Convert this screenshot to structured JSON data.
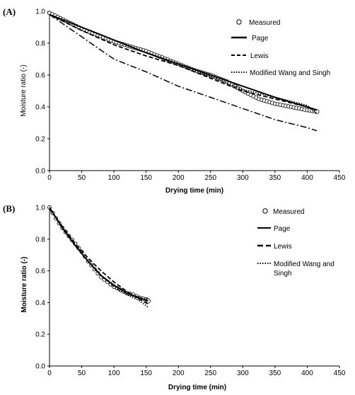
{
  "chart_data": [
    {
      "panel_label": "(A)",
      "type": "scatter",
      "xlabel": "Drying time (min)",
      "ylabel": "Moisture ratio (-)",
      "xlim": [
        0,
        450
      ],
      "ylim": [
        0,
        1.0
      ],
      "x_ticks": [
        "0",
        "50",
        "100",
        "150",
        "200",
        "250",
        "300",
        "350",
        "400",
        "450"
      ],
      "y_ticks": [
        "0.0",
        "0.2",
        "0.4",
        "0.6",
        "0.8",
        "1.0"
      ],
      "legend": {
        "placement": "top-right",
        "entries": [
          "Measured",
          "Page",
          "Lewis",
          "Modified Wang and Singh"
        ]
      },
      "series": [
        {
          "name": "Measured",
          "style": "circles",
          "x": [
            0,
            25,
            50,
            75,
            100,
            125,
            150,
            175,
            200,
            225,
            250,
            275,
            300,
            325,
            350,
            375,
            400,
            415
          ],
          "y": [
            0.99,
            0.94,
            0.89,
            0.85,
            0.81,
            0.78,
            0.75,
            0.71,
            0.67,
            0.63,
            0.6,
            0.56,
            0.5,
            0.45,
            0.42,
            0.4,
            0.38,
            0.37
          ]
        },
        {
          "name": "Page",
          "style": "solid",
          "x": [
            0,
            50,
            100,
            150,
            200,
            250,
            300,
            350,
            400,
            415
          ],
          "y": [
            0.98,
            0.9,
            0.82,
            0.74,
            0.67,
            0.6,
            0.53,
            0.46,
            0.4,
            0.38
          ]
        },
        {
          "name": "Lewis",
          "style": "dashed",
          "x": [
            0,
            50,
            100,
            150,
            200,
            250,
            300,
            350,
            400,
            415
          ],
          "y": [
            0.98,
            0.88,
            0.79,
            0.72,
            0.66,
            0.58,
            0.5,
            0.45,
            0.4,
            0.38
          ]
        },
        {
          "name": "Modified Wang and Singh",
          "style": "dotted",
          "x": [
            0,
            50,
            100,
            150,
            200,
            250,
            300,
            350,
            400,
            415
          ],
          "y": [
            0.98,
            0.9,
            0.82,
            0.74,
            0.67,
            0.59,
            0.51,
            0.46,
            0.41,
            0.36
          ]
        },
        {
          "name": "",
          "style": "dashdot",
          "x": [
            0,
            25,
            50,
            75,
            100,
            150,
            200,
            250,
            300,
            350,
            400,
            415
          ],
          "y": [
            0.98,
            0.91,
            0.84,
            0.77,
            0.7,
            0.62,
            0.53,
            0.46,
            0.39,
            0.32,
            0.27,
            0.25
          ]
        }
      ]
    },
    {
      "panel_label": "(B)",
      "type": "scatter",
      "xlabel": "Drying time (min)",
      "ylabel": "Moisture ratio (-)",
      "xlim": [
        0,
        450
      ],
      "ylim": [
        0,
        1.0
      ],
      "x_ticks": [
        "0",
        "50",
        "100",
        "150",
        "200",
        "250",
        "300",
        "350",
        "400",
        "450"
      ],
      "y_ticks": [
        "0.0",
        "0.2",
        "0.4",
        "0.6",
        "0.8",
        "1.0"
      ],
      "legend": {
        "placement": "top-right",
        "entries": [
          "Measured",
          "Page",
          "Lewis",
          "Modified Wang and Singh"
        ]
      },
      "series": [
        {
          "name": "Measured",
          "style": "circles",
          "x": [
            0,
            10,
            20,
            30,
            40,
            50,
            60,
            70,
            80,
            90,
            100,
            110,
            120,
            130,
            140,
            150,
            153
          ],
          "y": [
            1.0,
            0.93,
            0.87,
            0.82,
            0.77,
            0.72,
            0.66,
            0.61,
            0.56,
            0.53,
            0.5,
            0.48,
            0.46,
            0.45,
            0.43,
            0.42,
            0.41
          ]
        },
        {
          "name": "Page",
          "style": "solid",
          "x": [
            0,
            20,
            40,
            60,
            80,
            100,
            120,
            140,
            153
          ],
          "y": [
            1.0,
            0.87,
            0.76,
            0.66,
            0.57,
            0.51,
            0.46,
            0.43,
            0.41
          ]
        },
        {
          "name": "Lewis",
          "style": "dashed",
          "x": [
            0,
            20,
            40,
            60,
            80,
            100,
            120,
            140,
            153
          ],
          "y": [
            0.99,
            0.88,
            0.77,
            0.68,
            0.6,
            0.53,
            0.47,
            0.42,
            0.39
          ]
        },
        {
          "name": "Modified Wang and Singh",
          "style": "dotted",
          "x": [
            0,
            20,
            40,
            60,
            80,
            100,
            120,
            140,
            153
          ],
          "y": [
            1.0,
            0.87,
            0.76,
            0.66,
            0.57,
            0.5,
            0.45,
            0.41,
            0.37
          ]
        }
      ]
    }
  ],
  "legend_b_wrap": [
    "Modified Wang and",
    "Singh"
  ]
}
